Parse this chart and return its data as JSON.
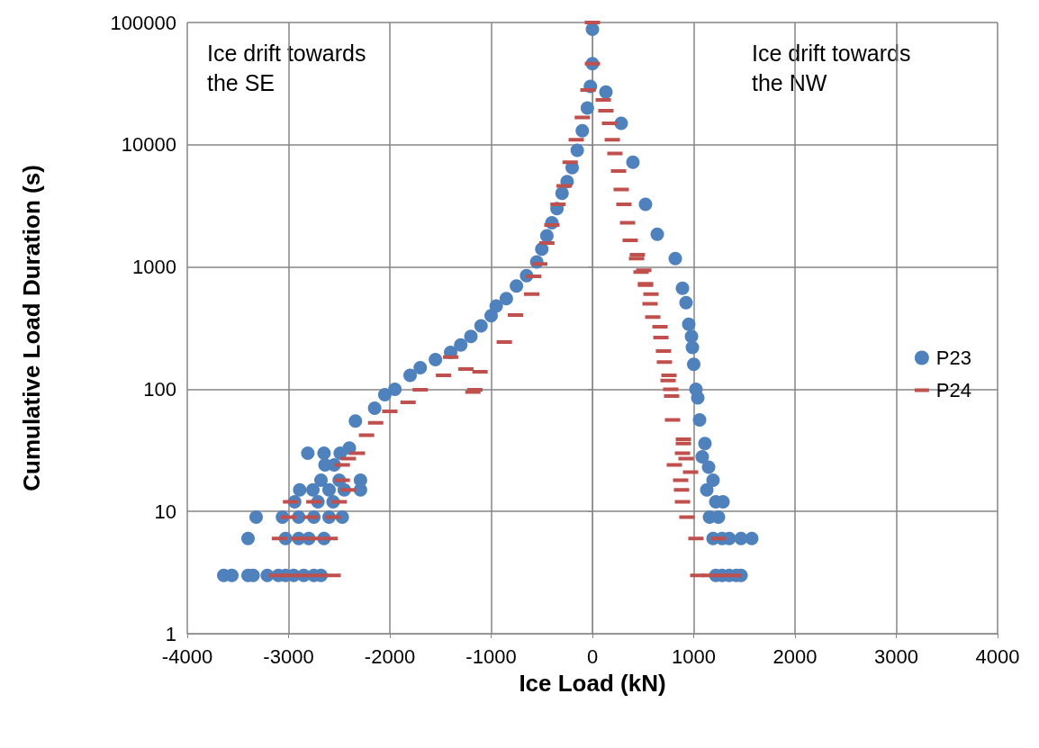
{
  "chart_data": {
    "type": "scatter",
    "xlabel": "Ice Load (kN)",
    "ylabel": "Cumulative Load Duration (s)",
    "xlim": [
      -4000,
      4000
    ],
    "xticks": [
      -4000,
      -3000,
      -2000,
      -1000,
      0,
      1000,
      2000,
      3000,
      4000
    ],
    "ylim": [
      1,
      100000
    ],
    "yticks": [
      1,
      10,
      100,
      1000,
      10000,
      100000
    ],
    "log": "y",
    "grid": true,
    "legend": "right",
    "annotations": [
      "Ice drift towards\nthe SE",
      "Ice drift towards\nthe NW"
    ],
    "series": [
      {
        "name": "P23",
        "color": "#4f81bd",
        "marker": "circle",
        "x": [
          -3640,
          -3560,
          -3400,
          -3350,
          -3210,
          -3100,
          -3030,
          -2950,
          -2850,
          -2750,
          -2680,
          -3400,
          -3030,
          -2900,
          -2800,
          -2650,
          -3320,
          -3060,
          -2900,
          -2750,
          -2600,
          -2470,
          -2940,
          -2710,
          -2560,
          -2890,
          -2760,
          -2600,
          -2450,
          -2290,
          -2680,
          -2500,
          -2290,
          -2640,
          -2550,
          -2810,
          -2650,
          -2490,
          -2400,
          -2340,
          -2150,
          -2050,
          -1950,
          -1800,
          -1700,
          -1550,
          -1400,
          -1300,
          -1200,
          -1100,
          -1000,
          -950,
          -850,
          -750,
          -650,
          -550,
          -500,
          -450,
          -400,
          -350,
          -300,
          -250,
          -200,
          -150,
          -100,
          -50,
          -20,
          0,
          0,
          133,
          284,
          400,
          524,
          640,
          818,
          889,
          924,
          951,
          978,
          987,
          1000,
          1022,
          1040,
          1058,
          1111,
          1084,
          1147,
          1191,
          1129,
          1218,
          1289,
          1156,
          1244,
          1191,
          1280,
          1351,
          1467,
          1573,
          1218,
          1280,
          1350,
          1420,
          1467
        ],
        "values": [
          3,
          3,
          3,
          3,
          3,
          3,
          3,
          3,
          3,
          3,
          3,
          6,
          6,
          6,
          6,
          6,
          9,
          9,
          9,
          9,
          9,
          9,
          12,
          12,
          12,
          15,
          15,
          15,
          15,
          15,
          18,
          18,
          18,
          24,
          24,
          30,
          30,
          30,
          33,
          55,
          70,
          90,
          100,
          130,
          150,
          175,
          200,
          230,
          270,
          330,
          400,
          480,
          550,
          700,
          850,
          1100,
          1400,
          1800,
          2300,
          3000,
          4000,
          5000,
          6500,
          9000,
          13000,
          20000,
          30000,
          46000,
          88000,
          27000,
          15000,
          7200,
          3250,
          1850,
          1170,
          670,
          510,
          340,
          270,
          220,
          160,
          100,
          85,
          56,
          36,
          28,
          23,
          18,
          15,
          12,
          12,
          9,
          9,
          6,
          6,
          6,
          6,
          6,
          3,
          3,
          3,
          3,
          3
        ]
      },
      {
        "name": "P24",
        "color": "#c0504d",
        "x": [
          -3120,
          -3000,
          -2850,
          -2700,
          -2560,
          -3090,
          -2900,
          -2750,
          -2590,
          -3000,
          -2780,
          -2560,
          -2980,
          -2750,
          -2500,
          -2410,
          -2470,
          -2470,
          -2410,
          -2320,
          -2230,
          -2140,
          -2000,
          -1820,
          -1700,
          -1470,
          -1400,
          -1250,
          -1180,
          -1160,
          -1110,
          -870,
          -760,
          -600,
          -580,
          -520,
          -450,
          -400,
          -340,
          -280,
          -220,
          -160,
          -100,
          -44,
          0,
          0,
          107,
          133,
          169,
          196,
          222,
          258,
          284,
          311,
          347,
          373,
          436,
          444,
          480,
          507,
          524,
          524,
          578,
          569,
          596,
          667,
          676,
          702,
          711,
          756,
          747,
          773,
          782,
          791,
          898,
          898,
          889,
          924,
          809,
          969,
          871,
          880,
          889,
          933,
          1022,
          1244,
          1040,
          1150,
          1280,
          1400
        ],
        "values": [
          3,
          3,
          3,
          3,
          3,
          6,
          6,
          6,
          6,
          9,
          9,
          9,
          12,
          12,
          12,
          15,
          18,
          24,
          27,
          30,
          42,
          53,
          66,
          78,
          99,
          130,
          183,
          146,
          95,
          99,
          139,
          243,
          405,
          600,
          840,
          1060,
          1570,
          2200,
          3250,
          4600,
          7200,
          11000,
          16700,
          28000,
          46000,
          100000,
          23300,
          19000,
          15000,
          11000,
          8500,
          6100,
          4300,
          3250,
          2300,
          1650,
          1170,
          1260,
          910,
          940,
          730,
          710,
          600,
          500,
          390,
          324,
          265,
          205,
          167,
          130,
          118,
          100,
          88,
          56,
          39,
          36,
          30,
          27,
          24,
          21,
          18,
          15,
          12,
          9,
          6,
          6,
          3,
          3,
          3,
          3
        ]
      }
    ]
  }
}
